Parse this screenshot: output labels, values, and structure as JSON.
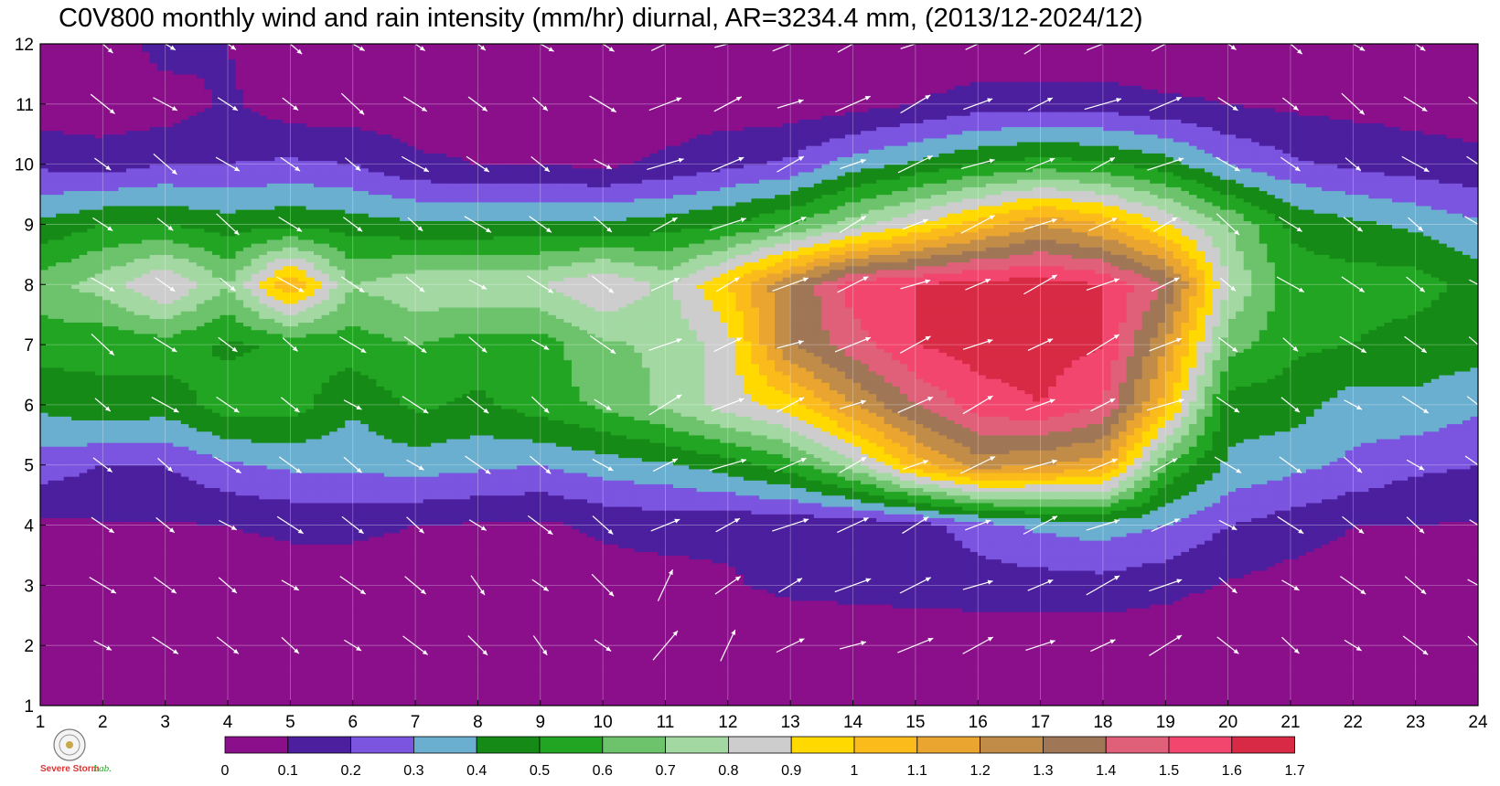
{
  "chart_data": {
    "type": "heatmap",
    "title": "C0V800 monthly wind and rain intensity (mm/hr) diurnal, AR=3234.4 mm, (2013/12-2024/12)",
    "xlabel": "",
    "ylabel": "",
    "x_ticks": [
      "1",
      "2",
      "3",
      "4",
      "5",
      "6",
      "7",
      "8",
      "9",
      "10",
      "11",
      "12",
      "13",
      "14",
      "15",
      "16",
      "17",
      "18",
      "19",
      "20",
      "21",
      "22",
      "23",
      "24"
    ],
    "y_ticks": [
      "1",
      "2",
      "3",
      "4",
      "5",
      "6",
      "7",
      "8",
      "9",
      "10",
      "11",
      "12"
    ],
    "xlim": [
      1,
      24
    ],
    "ylim": [
      1,
      12
    ],
    "grid": true,
    "colorbar": {
      "levels": [
        "0",
        "0.1",
        "0.2",
        "0.3",
        "0.4",
        "0.5",
        "0.6",
        "0.7",
        "0.8",
        "0.9",
        "1",
        "1.1",
        "1.2",
        "1.3",
        "1.4",
        "1.5",
        "1.6",
        "1.7"
      ],
      "colors": [
        "#8b0f8b",
        "#4b1f9e",
        "#7b55e0",
        "#6aaed0",
        "#168a16",
        "#22a522",
        "#6cc36c",
        "#a3d8a3",
        "#cdcdcd",
        "#ffd900",
        "#fbbb1b",
        "#e9a530",
        "#c08c48",
        "#9f7656",
        "#e0607a",
        "#f2466e",
        "#d92a45"
      ]
    },
    "rain_intensity": {
      "x": [
        1,
        2,
        3,
        4,
        5,
        6,
        7,
        8,
        9,
        10,
        11,
        12,
        13,
        14,
        15,
        16,
        17,
        18,
        19,
        20,
        21,
        22,
        23,
        24
      ],
      "y": [
        1,
        2,
        3,
        4,
        5,
        6,
        7,
        8,
        9,
        10,
        11,
        12
      ],
      "z": [
        [
          0.02,
          0.02,
          0.02,
          0.02,
          0.02,
          0.02,
          0.02,
          0.02,
          0.02,
          0.02,
          0.02,
          0.02,
          0.02,
          0.02,
          0.02,
          0.02,
          0.02,
          0.02,
          0.02,
          0.02,
          0.02,
          0.02,
          0.02,
          0.02
        ],
        [
          0.03,
          0.03,
          0.03,
          0.03,
          0.03,
          0.03,
          0.03,
          0.03,
          0.03,
          0.03,
          0.03,
          0.03,
          0.03,
          0.03,
          0.03,
          0.03,
          0.03,
          0.03,
          0.03,
          0.03,
          0.03,
          0.03,
          0.03,
          0.03
        ],
        [
          0.04,
          0.04,
          0.04,
          0.04,
          0.05,
          0.05,
          0.05,
          0.05,
          0.05,
          0.05,
          0.06,
          0.09,
          0.12,
          0.13,
          0.14,
          0.15,
          0.15,
          0.16,
          0.13,
          0.09,
          0.06,
          0.05,
          0.05,
          0.04
        ],
        [
          0.08,
          0.09,
          0.09,
          0.1,
          0.12,
          0.12,
          0.1,
          0.09,
          0.08,
          0.12,
          0.14,
          0.12,
          0.12,
          0.12,
          0.15,
          0.25,
          0.32,
          0.35,
          0.3,
          0.2,
          0.15,
          0.1,
          0.1,
          0.09
        ],
        [
          0.25,
          0.2,
          0.2,
          0.28,
          0.32,
          0.32,
          0.35,
          0.32,
          0.3,
          0.35,
          0.38,
          0.45,
          0.55,
          0.75,
          1.05,
          1.25,
          1.2,
          1.15,
          0.6,
          0.38,
          0.33,
          0.28,
          0.22,
          0.2
        ],
        [
          0.42,
          0.48,
          0.45,
          0.55,
          0.55,
          0.42,
          0.52,
          0.48,
          0.55,
          0.62,
          0.72,
          0.85,
          0.95,
          1.2,
          1.4,
          1.55,
          1.6,
          1.5,
          1.05,
          0.45,
          0.45,
          0.35,
          0.38,
          0.32
        ],
        [
          0.55,
          0.52,
          0.55,
          0.48,
          0.52,
          0.55,
          0.6,
          0.55,
          0.55,
          0.68,
          0.72,
          0.85,
          1.3,
          1.45,
          1.6,
          1.65,
          1.65,
          1.6,
          1.2,
          0.65,
          0.52,
          0.5,
          0.45,
          0.45
        ],
        [
          0.65,
          0.75,
          0.92,
          0.7,
          1.1,
          0.7,
          0.78,
          0.78,
          0.8,
          0.9,
          0.78,
          1.0,
          1.3,
          1.55,
          1.6,
          1.65,
          1.65,
          1.6,
          1.4,
          0.8,
          0.55,
          0.55,
          0.55,
          0.45
        ],
        [
          0.42,
          0.5,
          0.5,
          0.45,
          0.48,
          0.45,
          0.42,
          0.42,
          0.42,
          0.42,
          0.45,
          0.5,
          0.6,
          0.75,
          0.9,
          1.05,
          1.2,
          1.1,
          0.9,
          0.7,
          0.48,
          0.42,
          0.38,
          0.32
        ],
        [
          0.18,
          0.15,
          0.2,
          0.2,
          0.22,
          0.2,
          0.12,
          0.1,
          0.1,
          0.08,
          0.12,
          0.18,
          0.22,
          0.35,
          0.42,
          0.5,
          0.55,
          0.52,
          0.45,
          0.3,
          0.22,
          0.18,
          0.15,
          0.12
        ],
        [
          0.04,
          0.04,
          0.04,
          0.12,
          0.04,
          0.04,
          0.04,
          0.04,
          0.04,
          0.04,
          0.04,
          0.04,
          0.04,
          0.06,
          0.1,
          0.15,
          0.15,
          0.15,
          0.12,
          0.1,
          0.08,
          0.07,
          0.06,
          0.06
        ],
        [
          0.02,
          0.02,
          0.15,
          0.1,
          0.02,
          0.02,
          0.02,
          0.02,
          0.02,
          0.02,
          0.02,
          0.02,
          0.02,
          0.02,
          0.02,
          0.02,
          0.02,
          0.02,
          0.02,
          0.02,
          0.02,
          0.02,
          0.02,
          0.02
        ]
      ]
    },
    "wind_direction": "mostly toward east-southeast in early and late hours, toward east-northeast from about 11 to 19"
  },
  "logo": {
    "text": "Severe Storm",
    "lab": "Lab."
  }
}
